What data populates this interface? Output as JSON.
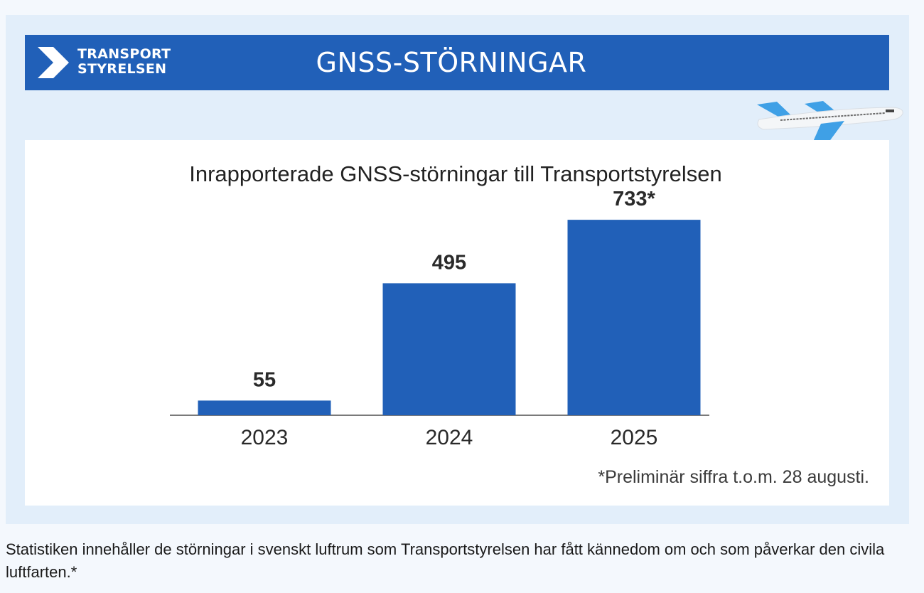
{
  "banner": {
    "logo_line1": "TRANSPORT",
    "logo_line2": "STYRELSEN",
    "title": "GNSS-STÖRNINGAR"
  },
  "chart_data": {
    "type": "bar",
    "title": "Inrapporterade GNSS-störningar till Transportstyrelsen",
    "categories": [
      "2023",
      "2024",
      "2025"
    ],
    "values": [
      55,
      495,
      733
    ],
    "value_labels": [
      "55",
      "495",
      "733*"
    ],
    "xlabel": "",
    "ylabel": "",
    "ylim": [
      0,
      800
    ],
    "grid": false,
    "bar_color": "#2160b8",
    "footnote": "*Preliminär siffra t.o.m. 28 augusti."
  },
  "caption": "Statistiken innehåller de störningar i svenskt luftrum som Transportstyrelsen har fått kännedom om och som påverkar den civila luftfarten.*",
  "colors": {
    "brand_blue": "#2160b8",
    "panel_background": "#e2eefa",
    "plane_accent": "#3fa0e6"
  },
  "icons": {
    "logo": "transportstyrelsen-logo-icon",
    "plane": "airplane-icon"
  }
}
